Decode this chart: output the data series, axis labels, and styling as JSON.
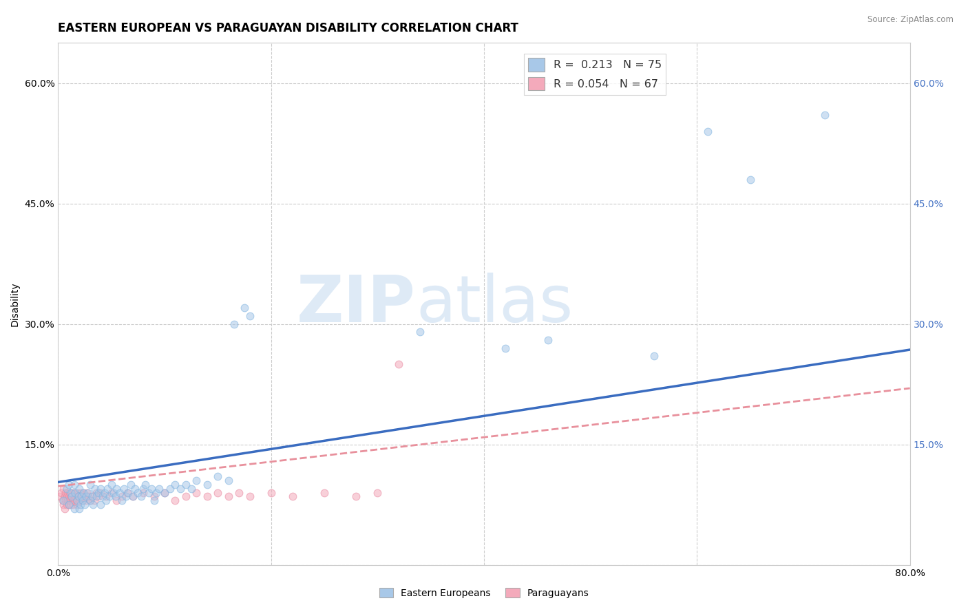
{
  "title": "EASTERN EUROPEAN VS PARAGUAYAN DISABILITY CORRELATION CHART",
  "source": "Source: ZipAtlas.com",
  "ylabel": "Disability",
  "xlim": [
    0.0,
    0.8
  ],
  "ylim": [
    0.0,
    0.65
  ],
  "xticks": [
    0.0,
    0.2,
    0.4,
    0.6,
    0.8
  ],
  "xtick_labels": [
    "0.0%",
    "",
    "",
    "",
    "80.0%"
  ],
  "yticks": [
    0.0,
    0.15,
    0.3,
    0.45,
    0.6
  ],
  "ytick_labels_left": [
    "",
    "15.0%",
    "30.0%",
    "45.0%",
    "60.0%"
  ],
  "ytick_labels_right": [
    "",
    "15.0%",
    "30.0%",
    "45.0%",
    "60.0%"
  ],
  "blue_color": "#A8C8E8",
  "blue_edge_color": "#7EB3E0",
  "pink_color": "#F4AABB",
  "pink_edge_color": "#E888A0",
  "blue_line_color": "#3A6CC0",
  "pink_line_color": "#E8909C",
  "legend_label1": "Eastern Europeans",
  "legend_label2": "Paraguayans",
  "R1": 0.213,
  "N1": 75,
  "R2": 0.054,
  "N2": 67,
  "blue_scatter_x": [
    0.005,
    0.008,
    0.01,
    0.01,
    0.012,
    0.013,
    0.015,
    0.015,
    0.016,
    0.018,
    0.019,
    0.02,
    0.02,
    0.021,
    0.022,
    0.023,
    0.024,
    0.025,
    0.026,
    0.028,
    0.03,
    0.03,
    0.032,
    0.033,
    0.035,
    0.036,
    0.038,
    0.04,
    0.04,
    0.042,
    0.044,
    0.045,
    0.046,
    0.048,
    0.05,
    0.052,
    0.054,
    0.055,
    0.058,
    0.06,
    0.062,
    0.064,
    0.066,
    0.068,
    0.07,
    0.072,
    0.075,
    0.078,
    0.08,
    0.082,
    0.085,
    0.088,
    0.09,
    0.092,
    0.095,
    0.1,
    0.105,
    0.11,
    0.115,
    0.12,
    0.125,
    0.13,
    0.14,
    0.15,
    0.16,
    0.165,
    0.175,
    0.18,
    0.34,
    0.42,
    0.46,
    0.56,
    0.61,
    0.65,
    0.72
  ],
  "blue_scatter_y": [
    0.08,
    0.095,
    0.1,
    0.075,
    0.09,
    0.085,
    0.1,
    0.07,
    0.09,
    0.08,
    0.085,
    0.095,
    0.07,
    0.075,
    0.085,
    0.08,
    0.09,
    0.075,
    0.085,
    0.09,
    0.1,
    0.08,
    0.085,
    0.075,
    0.095,
    0.085,
    0.09,
    0.095,
    0.075,
    0.085,
    0.09,
    0.08,
    0.095,
    0.085,
    0.1,
    0.09,
    0.085,
    0.095,
    0.09,
    0.08,
    0.095,
    0.085,
    0.09,
    0.1,
    0.085,
    0.095,
    0.09,
    0.085,
    0.095,
    0.1,
    0.09,
    0.095,
    0.08,
    0.09,
    0.095,
    0.09,
    0.095,
    0.1,
    0.095,
    0.1,
    0.095,
    0.105,
    0.1,
    0.11,
    0.105,
    0.3,
    0.32,
    0.31,
    0.29,
    0.27,
    0.28,
    0.26,
    0.54,
    0.48,
    0.56
  ],
  "pink_scatter_x": [
    0.002,
    0.003,
    0.004,
    0.005,
    0.005,
    0.006,
    0.006,
    0.007,
    0.007,
    0.008,
    0.008,
    0.009,
    0.009,
    0.01,
    0.01,
    0.011,
    0.011,
    0.012,
    0.012,
    0.013,
    0.014,
    0.014,
    0.015,
    0.015,
    0.016,
    0.017,
    0.018,
    0.018,
    0.019,
    0.02,
    0.021,
    0.022,
    0.023,
    0.024,
    0.025,
    0.026,
    0.027,
    0.028,
    0.03,
    0.032,
    0.034,
    0.036,
    0.038,
    0.04,
    0.045,
    0.05,
    0.055,
    0.06,
    0.065,
    0.07,
    0.08,
    0.09,
    0.1,
    0.11,
    0.12,
    0.13,
    0.14,
    0.15,
    0.16,
    0.17,
    0.18,
    0.2,
    0.22,
    0.25,
    0.28,
    0.3,
    0.32
  ],
  "pink_scatter_y": [
    0.085,
    0.09,
    0.08,
    0.095,
    0.075,
    0.085,
    0.07,
    0.09,
    0.08,
    0.085,
    0.075,
    0.09,
    0.08,
    0.085,
    0.075,
    0.09,
    0.08,
    0.085,
    0.075,
    0.09,
    0.08,
    0.075,
    0.09,
    0.08,
    0.085,
    0.08,
    0.09,
    0.075,
    0.085,
    0.08,
    0.09,
    0.085,
    0.08,
    0.09,
    0.085,
    0.08,
    0.09,
    0.085,
    0.08,
    0.085,
    0.08,
    0.09,
    0.085,
    0.09,
    0.085,
    0.09,
    0.08,
    0.085,
    0.09,
    0.085,
    0.09,
    0.085,
    0.09,
    0.08,
    0.085,
    0.09,
    0.085,
    0.09,
    0.085,
    0.09,
    0.085,
    0.09,
    0.085,
    0.09,
    0.085,
    0.09,
    0.25
  ],
  "watermark_zip": "ZIP",
  "watermark_atlas": "atlas",
  "background_color": "#FFFFFF",
  "grid_color": "#CCCCCC",
  "title_fontsize": 12,
  "axis_fontsize": 10,
  "tick_fontsize": 10,
  "marker_size": 60,
  "marker_alpha": 0.55,
  "blue_trend_start_x": 0.0,
  "blue_trend_end_x": 0.8,
  "blue_trend_start_y": 0.103,
  "blue_trend_end_y": 0.268,
  "pink_trend_start_x": 0.0,
  "pink_trend_end_x": 0.8,
  "pink_trend_start_y": 0.098,
  "pink_trend_end_y": 0.22
}
